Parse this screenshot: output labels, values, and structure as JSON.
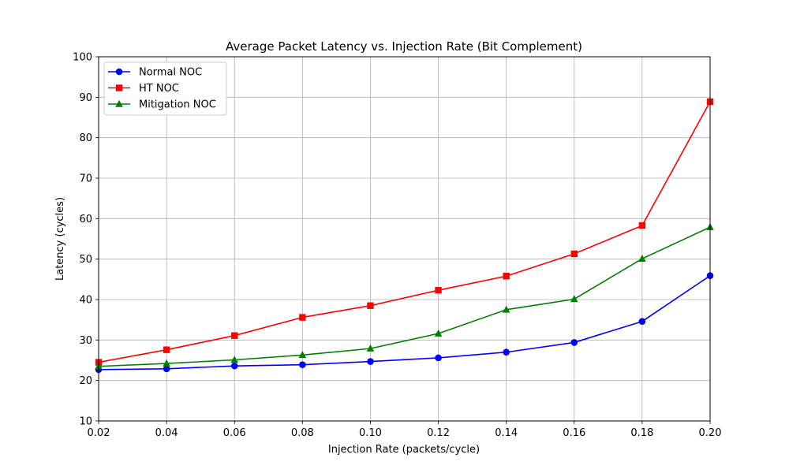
{
  "chart_data": {
    "type": "line",
    "title": "Average Packet Latency vs. Injection Rate (Bit Complement)",
    "xlabel": "Injection Rate (packets/cycle)",
    "ylabel": "Latency (cycles)",
    "xlim": [
      0.02,
      0.2
    ],
    "ylim": [
      10,
      100
    ],
    "x": [
      0.02,
      0.04,
      0.06,
      0.08,
      0.1,
      0.12,
      0.14,
      0.16,
      0.18,
      0.2
    ],
    "x_tick_labels": [
      "0.02",
      "0.04",
      "0.06",
      "0.08",
      "0.10",
      "0.12",
      "0.14",
      "0.16",
      "0.18",
      "0.20"
    ],
    "y_ticks": [
      10,
      20,
      30,
      40,
      50,
      60,
      70,
      80,
      90,
      100
    ],
    "y_tick_labels": [
      "10",
      "20",
      "30",
      "40",
      "50",
      "60",
      "70",
      "80",
      "90",
      "100"
    ],
    "grid": true,
    "legend_position": "top-left",
    "series": [
      {
        "name": "Normal NOC",
        "color": "#0000ff",
        "marker": "circle",
        "values": [
          22.7,
          22.9,
          23.6,
          23.9,
          24.7,
          25.6,
          27.0,
          29.4,
          34.6,
          45.9
        ]
      },
      {
        "name": "HT NOC",
        "color": "#ff0000",
        "marker": "square",
        "values": [
          24.5,
          27.6,
          31.1,
          35.6,
          38.5,
          42.3,
          45.8,
          51.3,
          58.3,
          88.9
        ]
      },
      {
        "name": "Mitigation NOC",
        "color": "#008000",
        "marker": "triangle",
        "values": [
          23.5,
          24.2,
          25.1,
          26.3,
          27.9,
          31.6,
          37.5,
          40.1,
          50.1,
          57.9
        ]
      }
    ]
  }
}
